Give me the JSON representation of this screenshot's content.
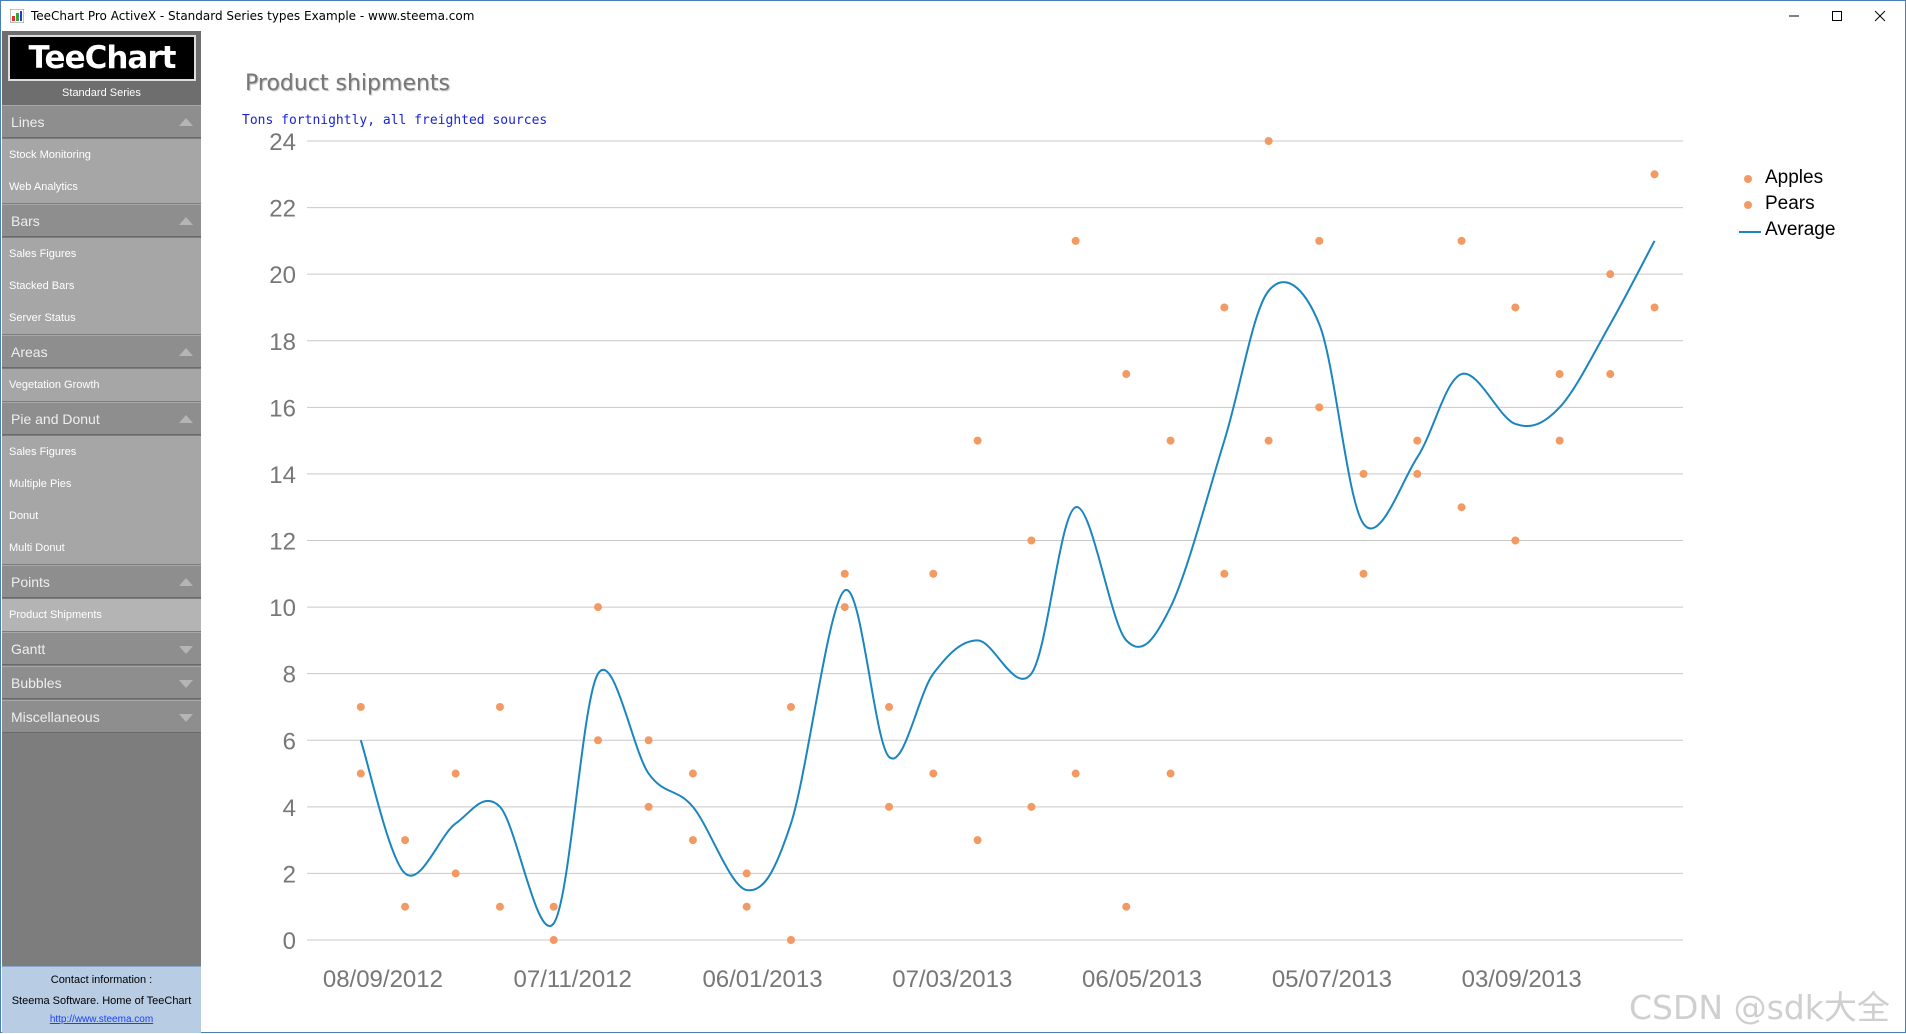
{
  "window": {
    "title": "TeeChart Pro ActiveX - Standard Series types Example - www.steema.com",
    "minimize_icon": "minimize-icon",
    "maximize_icon": "maximize-icon",
    "close_icon": "close-icon"
  },
  "sidebar": {
    "logo_text": "TeeChart",
    "logo_subtitle": "Standard Series",
    "sections": [
      {
        "label": "Lines",
        "expanded": true,
        "items": [
          "Stock Monitoring",
          "Web Analytics"
        ]
      },
      {
        "label": "Bars",
        "expanded": true,
        "items": [
          "Sales Figures",
          "Stacked Bars",
          "Server Status"
        ]
      },
      {
        "label": "Areas",
        "expanded": true,
        "items": [
          "Vegetation Growth"
        ]
      },
      {
        "label": "Pie and Donut",
        "expanded": true,
        "items": [
          "Sales Figures",
          "Multiple Pies",
          "Donut",
          "Multi Donut"
        ]
      },
      {
        "label": "Points",
        "expanded": true,
        "items": [
          "Product Shipments"
        ],
        "active_item": "Product Shipments"
      },
      {
        "label": "Gantt",
        "expanded": false,
        "items": []
      },
      {
        "label": "Bubbles",
        "expanded": false,
        "items": []
      },
      {
        "label": "Miscellaneous",
        "expanded": false,
        "items": []
      }
    ],
    "contact": {
      "line1": "Contact information :",
      "line2": "Steema Software. Home of TeeChart",
      "link": "http://www.steema.com"
    }
  },
  "watermark": "CSDN @sdk大全",
  "chart_data": {
    "type": "scatter",
    "title": "Product shipments",
    "subtitle": "Tons fortnightly, all freighted sources",
    "xlabel": "",
    "ylabel": "",
    "ylim": [
      0,
      24
    ],
    "yticks": [
      0,
      2,
      4,
      6,
      8,
      10,
      12,
      14,
      16,
      18,
      20,
      22,
      24
    ],
    "x_tick_labels": [
      "08/09/2012",
      "07/11/2012",
      "06/01/2013",
      "07/03/2013",
      "06/05/2013",
      "05/07/2013",
      "03/09/2013"
    ],
    "x_tick_dates": [
      "2012-09-08",
      "2012-11-07",
      "2013-01-06",
      "2013-03-07",
      "2013-05-06",
      "2013-07-05",
      "2013-09-03"
    ],
    "xlim": [
      "2012-08-15",
      "2013-10-24"
    ],
    "grid": "horizontal",
    "legend_position": "top-right",
    "colors": {
      "apples": "#f39a63",
      "pears": "#f39a63",
      "average": "#1b85c0"
    },
    "x": [
      "2012-09-01",
      "2012-09-15",
      "2012-10-01",
      "2012-10-15",
      "2012-11-01",
      "2012-11-15",
      "2012-12-01",
      "2012-12-15",
      "2013-01-01",
      "2013-01-15",
      "2013-02-01",
      "2013-02-15",
      "2013-03-01",
      "2013-03-15",
      "2013-04-01",
      "2013-04-15",
      "2013-05-01",
      "2013-05-15",
      "2013-06-01",
      "2013-06-15",
      "2013-07-01",
      "2013-07-15",
      "2013-08-01",
      "2013-08-15",
      "2013-09-01",
      "2013-09-15",
      "2013-10-01",
      "2013-10-15"
    ],
    "series": [
      {
        "name": "Apples",
        "type": "points",
        "values": [
          7,
          3,
          5,
          7,
          1,
          10,
          6,
          5,
          2,
          7,
          11,
          7,
          11,
          15,
          12,
          21,
          17,
          15,
          19,
          24,
          21,
          14,
          15,
          21,
          19,
          17,
          20,
          23
        ]
      },
      {
        "name": "Pears",
        "type": "points",
        "values": [
          5,
          1,
          2,
          1,
          0,
          6,
          4,
          3,
          1,
          0,
          10,
          4,
          5,
          3,
          4,
          5,
          1,
          5,
          11,
          15,
          16,
          11,
          14,
          13,
          12,
          15,
          17,
          19
        ]
      },
      {
        "name": "Average",
        "type": "line",
        "values": [
          6,
          2,
          3.5,
          4,
          0.5,
          8,
          5,
          4,
          1.5,
          3.5,
          10.5,
          5.5,
          8,
          9,
          8,
          13,
          9,
          10,
          15,
          19.5,
          18.5,
          12.5,
          14.5,
          17,
          15.5,
          16,
          18.5,
          21
        ]
      }
    ]
  }
}
